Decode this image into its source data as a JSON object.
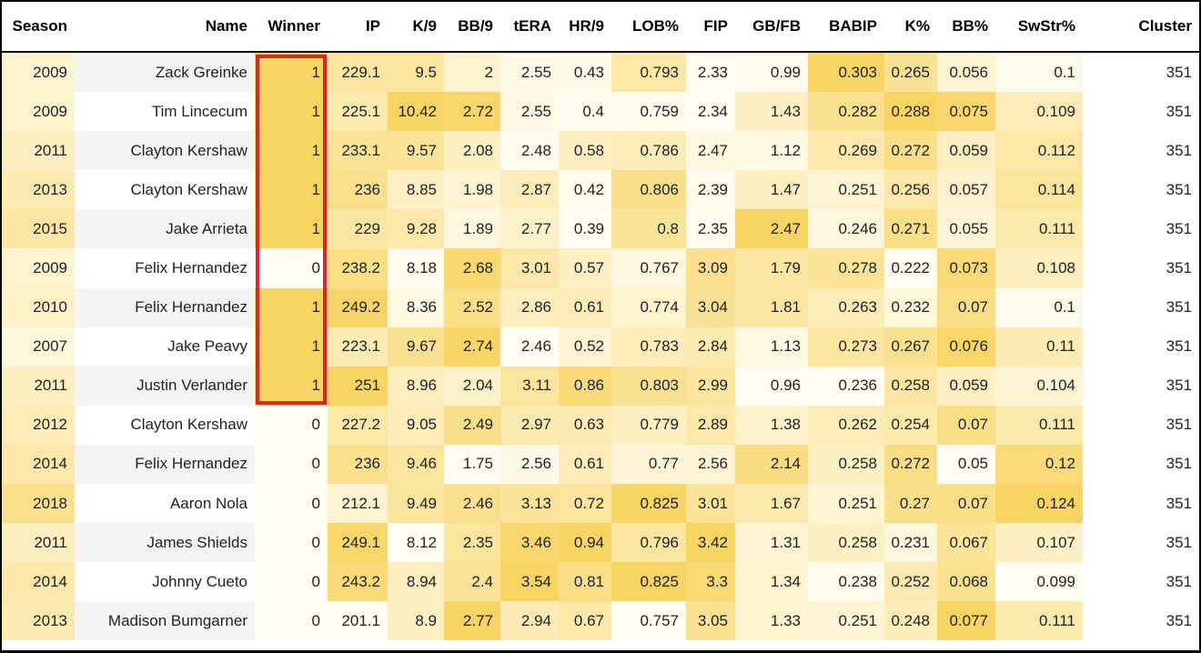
{
  "table": {
    "columns": [
      "Season",
      "Name",
      "Winner",
      "IP",
      "K/9",
      "BB/9",
      "tERA",
      "HR/9",
      "LOB%",
      "FIP",
      "GB/FB",
      "BABIP",
      "K%",
      "BB%",
      "SwStr%",
      "Cluster"
    ],
    "rows": [
      [
        "2009",
        "Zack Greinke",
        "1",
        "229.1",
        "9.5",
        "2",
        "2.55",
        "0.43",
        "0.793",
        "2.33",
        "0.99",
        "0.303",
        "0.265",
        "0.056",
        "0.1",
        "351"
      ],
      [
        "2009",
        "Tim Lincecum",
        "1",
        "225.1",
        "10.42",
        "2.72",
        "2.55",
        "0.4",
        "0.759",
        "2.34",
        "1.43",
        "0.282",
        "0.288",
        "0.075",
        "0.109",
        "351"
      ],
      [
        "2011",
        "Clayton Kershaw",
        "1",
        "233.1",
        "9.57",
        "2.08",
        "2.48",
        "0.58",
        "0.786",
        "2.47",
        "1.12",
        "0.269",
        "0.272",
        "0.059",
        "0.112",
        "351"
      ],
      [
        "2013",
        "Clayton Kershaw",
        "1",
        "236",
        "8.85",
        "1.98",
        "2.87",
        "0.42",
        "0.806",
        "2.39",
        "1.47",
        "0.251",
        "0.256",
        "0.057",
        "0.114",
        "351"
      ],
      [
        "2015",
        "Jake Arrieta",
        "1",
        "229",
        "9.28",
        "1.89",
        "2.77",
        "0.39",
        "0.8",
        "2.35",
        "2.47",
        "0.246",
        "0.271",
        "0.055",
        "0.111",
        "351"
      ],
      [
        "2009",
        "Felix Hernandez",
        "0",
        "238.2",
        "8.18",
        "2.68",
        "3.01",
        "0.57",
        "0.767",
        "3.09",
        "1.79",
        "0.278",
        "0.222",
        "0.073",
        "0.108",
        "351"
      ],
      [
        "2010",
        "Felix Hernandez",
        "1",
        "249.2",
        "8.36",
        "2.52",
        "2.86",
        "0.61",
        "0.774",
        "3.04",
        "1.81",
        "0.263",
        "0.232",
        "0.07",
        "0.1",
        "351"
      ],
      [
        "2007",
        "Jake Peavy",
        "1",
        "223.1",
        "9.67",
        "2.74",
        "2.46",
        "0.52",
        "0.783",
        "2.84",
        "1.13",
        "0.273",
        "0.267",
        "0.076",
        "0.11",
        "351"
      ],
      [
        "2011",
        "Justin Verlander",
        "1",
        "251",
        "8.96",
        "2.04",
        "3.11",
        "0.86",
        "0.803",
        "2.99",
        "0.96",
        "0.236",
        "0.258",
        "0.059",
        "0.104",
        "351"
      ],
      [
        "2012",
        "Clayton Kershaw",
        "0",
        "227.2",
        "9.05",
        "2.49",
        "2.97",
        "0.63",
        "0.779",
        "2.89",
        "1.38",
        "0.262",
        "0.254",
        "0.07",
        "0.111",
        "351"
      ],
      [
        "2014",
        "Felix Hernandez",
        "0",
        "236",
        "9.46",
        "1.75",
        "2.56",
        "0.61",
        "0.77",
        "2.56",
        "2.14",
        "0.258",
        "0.272",
        "0.05",
        "0.12",
        "351"
      ],
      [
        "2018",
        "Aaron Nola",
        "0",
        "212.1",
        "9.49",
        "2.46",
        "3.13",
        "0.72",
        "0.825",
        "3.01",
        "1.67",
        "0.251",
        "0.27",
        "0.07",
        "0.124",
        "351"
      ],
      [
        "2011",
        "James Shields",
        "0",
        "249.1",
        "8.12",
        "2.35",
        "3.46",
        "0.94",
        "0.796",
        "3.42",
        "1.31",
        "0.258",
        "0.231",
        "0.067",
        "0.107",
        "351"
      ],
      [
        "2014",
        "Johnny Cueto",
        "0",
        "243.2",
        "8.94",
        "2.4",
        "3.54",
        "0.81",
        "0.825",
        "3.3",
        "1.34",
        "0.238",
        "0.252",
        "0.068",
        "0.099",
        "351"
      ],
      [
        "2013",
        "Madison Bumgarner",
        "0",
        "201.1",
        "8.9",
        "2.77",
        "2.94",
        "0.67",
        "0.757",
        "3.05",
        "1.33",
        "0.251",
        "0.248",
        "0.077",
        "0.111",
        "351"
      ]
    ]
  },
  "heat": {
    "light": "#fffdf2",
    "dark": "#f8d462",
    "neutral": "#ffffff",
    "name_row_a": "#f4f4f4",
    "name_row_b": "#ffffff"
  },
  "highlight": {
    "color": "#e0242b"
  }
}
